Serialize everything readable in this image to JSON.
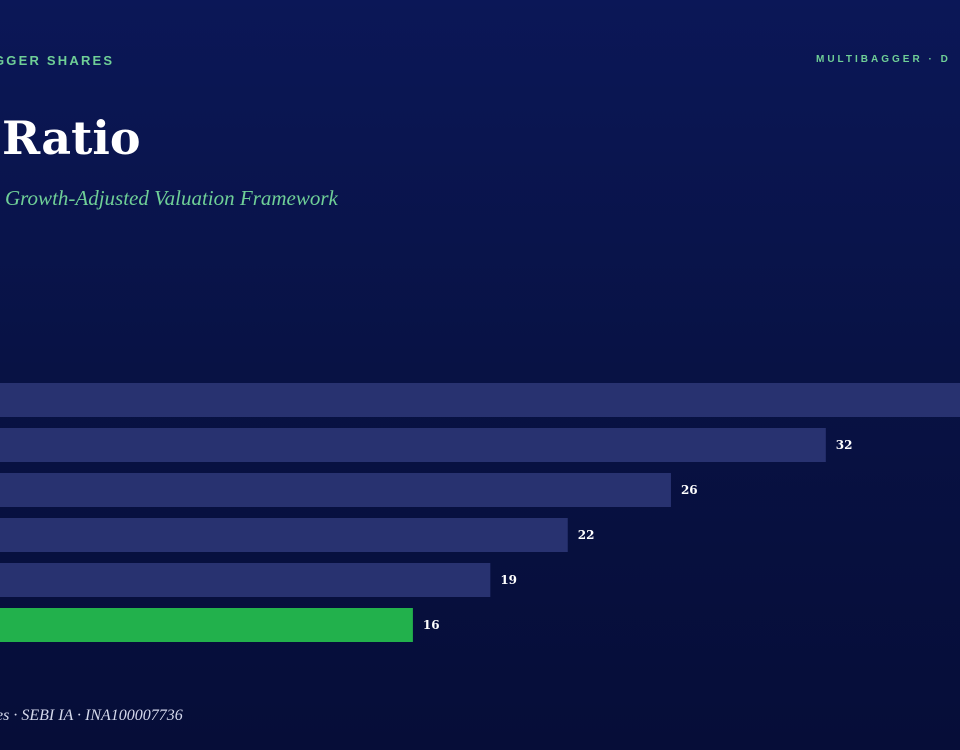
{
  "header": {
    "left_label": "GGER SHARES",
    "right_label": "MULTIBAGGER · D"
  },
  "title": "Ratio",
  "subtitle": "Growth-Adjusted Valuation Framework",
  "footer": "es · SEBI IA · INA100007736",
  "colors": {
    "background": "#081244",
    "bar_default": "#283270",
    "bar_highlight": "#22b14c",
    "accent_text": "#6fcf97"
  },
  "chart_data": {
    "type": "bar",
    "orientation": "horizontal",
    "values": [
      null,
      32,
      26,
      22,
      19,
      16
    ],
    "highlight_index": 5,
    "xlim": [
      0,
      37.2
    ]
  }
}
